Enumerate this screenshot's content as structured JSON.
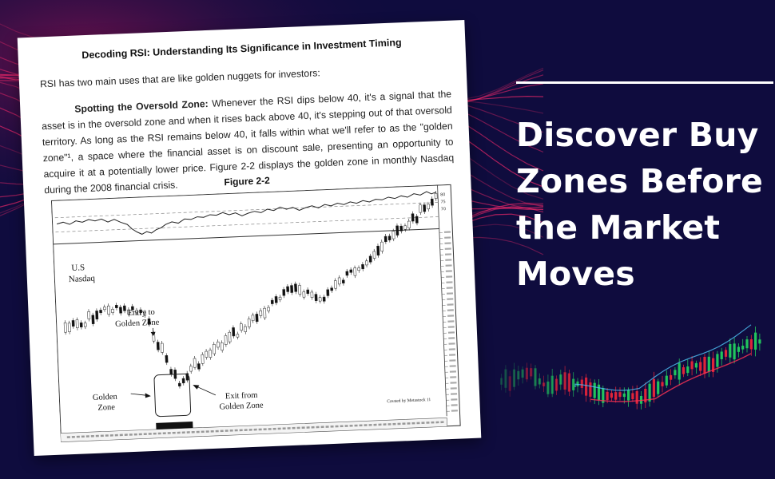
{
  "colors": {
    "background": "#0f0c3e",
    "accent_pink": "#ff2a6d",
    "headline": "#ffffff",
    "candle_up": "#21c55d",
    "candle_down": "#e0243a"
  },
  "page": {
    "title": "Decoding RSI: Understanding Its Significance in Investment Timing",
    "intro": "RSI has two main uses that are like golden nuggets for investors:",
    "paragraph_lead": "Spotting the Oversold Zone:",
    "paragraph_body": "Whenever the RSI dips below 40, it's a signal that the asset is in the oversold zone and when it rises back above 40, it's stepping out of that oversold territory. As long as the RSI remains below 40, it falls within what we'll refer to as the \"golden zone\"¹, a space where the financial asset is on discount sale, presenting an opportunity to acquire it at a potentially lower price. Figure 2-2 displays the golden zone in monthly Nasdaq during the 2008 financial crisis.",
    "figure_label": "Figure 2-2"
  },
  "figure": {
    "series_label_1": "U.S",
    "series_label_2": "Nasdaq",
    "entry_label_1": "Entry to",
    "entry_label_2": "Golden Zone",
    "zone_label_1": "Golden",
    "zone_label_2": "Zone",
    "exit_label_1": "Exit from",
    "exit_label_2": "Golden Zone",
    "credit": "Created by Metastock 11",
    "rsi_axis_ticks": [
      "80",
      "75",
      "70"
    ]
  },
  "headline": {
    "lines": [
      "Discover Buy",
      "Zones Before",
      "the Market",
      "Moves"
    ]
  }
}
